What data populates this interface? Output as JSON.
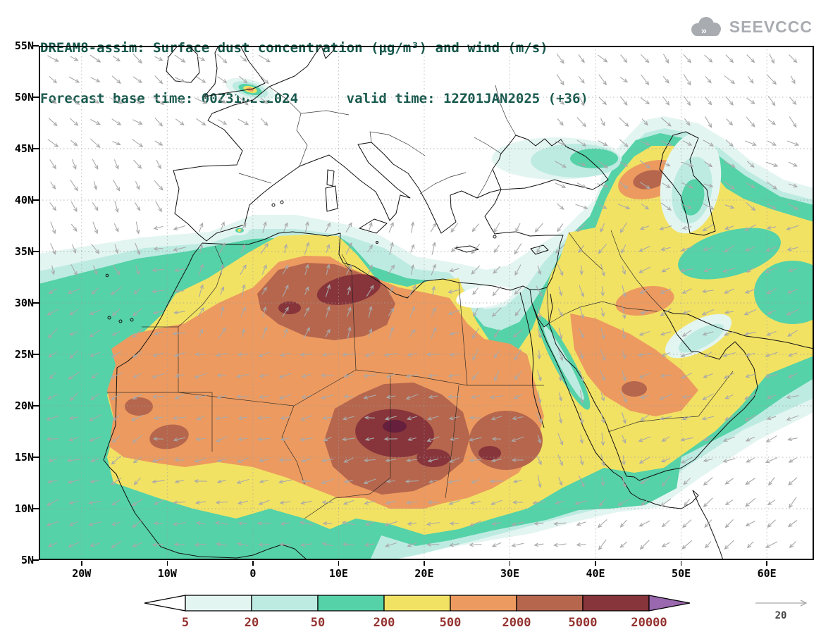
{
  "header": {
    "title_line1": "DREAM8-assim: Surface dust concentration (μg/m³) and wind (m/s)",
    "title_line2": "Forecast base time: 00Z31DEC2024      valid time: 12Z01JAN2025 (+36)",
    "title_color": "#17594d"
  },
  "logo": {
    "text": "SEEVCCC",
    "color": "#a8acb1"
  },
  "axes": {
    "lat_labels": [
      "55N",
      "50N",
      "45N",
      "40N",
      "35N",
      "30N",
      "25N",
      "20N",
      "15N",
      "10N",
      "5N"
    ],
    "lon_labels": [
      "20W",
      "10W",
      "0",
      "10E",
      "20E",
      "30E",
      "40E",
      "50E",
      "60E"
    ],
    "label_color": "#000000"
  },
  "legend": {
    "tick_labels": [
      "5",
      "20",
      "50",
      "200",
      "500",
      "2000",
      "5000",
      "20000"
    ],
    "label_color": "#93322f"
  },
  "wind_ref": {
    "label": "20",
    "color": "#a9a9a9"
  },
  "chart_data": {
    "type": "heatmap",
    "title": "DREAM8-assim: Surface dust concentration (μg/m³) and wind (m/s)",
    "subtitle": "Forecast base time: 00Z31DEC2024  valid time: 12Z01JAN2025 (+36)",
    "units": "μg/m³",
    "wind_units": "m/s",
    "lon_range": [
      -25,
      65.5
    ],
    "lat_range": [
      5,
      55
    ],
    "lon_ticks": [
      -20,
      -10,
      0,
      10,
      20,
      30,
      40,
      50,
      60
    ],
    "lat_ticks": [
      10,
      15,
      20,
      25,
      30,
      35,
      40,
      45,
      50
    ],
    "contour_levels": [
      5,
      20,
      50,
      200,
      500,
      2000,
      5000,
      20000
    ],
    "colors": [
      "#ffffff",
      "#e3f5f1",
      "#bdebe2",
      "#55d2a7",
      "#f2e264",
      "#ec9a60",
      "#b5664d",
      "#87343b",
      "#9a68ae"
    ],
    "darkest_core_color": "#661f3c",
    "coastline_color": "#111111",
    "border_color": "#222222",
    "gridline_color": "#9e9e9e",
    "wind_arrow_color": "#a9a9a9",
    "wind_reference_ms": 20
  }
}
